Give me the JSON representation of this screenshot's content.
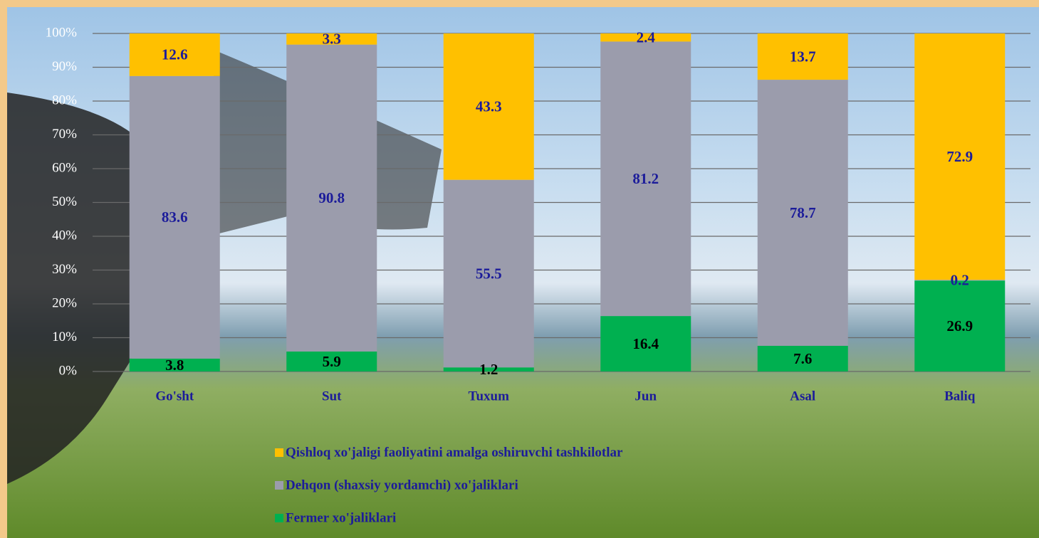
{
  "chart_data": {
    "type": "bar",
    "stacked": true,
    "categories": [
      "Go'sht",
      "Sut",
      "Tuxum",
      "Jun",
      "Asal",
      "Baliq"
    ],
    "series": [
      {
        "name": "Fermer xo'jaliklari",
        "color": "#00b050",
        "values": [
          3.8,
          5.9,
          1.2,
          16.4,
          7.6,
          26.9
        ]
      },
      {
        "name": "Dehqon (shaxsiy yordamchi) xo'jaliklari",
        "color": "#9b9cac",
        "values": [
          83.6,
          90.8,
          55.5,
          81.2,
          78.7,
          0.2
        ]
      },
      {
        "name": "Qishloq xo'jaligi faoliyatini amalga oshiruvchi tashkilotlar",
        "color": "#ffc000",
        "values": [
          12.6,
          3.3,
          43.3,
          2.4,
          13.7,
          72.9
        ]
      }
    ],
    "ylim": [
      0,
      100
    ],
    "yticks": [
      {
        "value": 0,
        "label": "0%"
      },
      {
        "value": 10,
        "label": "10%"
      },
      {
        "value": 20,
        "label": "20%"
      },
      {
        "value": 30,
        "label": "30%"
      },
      {
        "value": 40,
        "label": "40%"
      },
      {
        "value": 50,
        "label": "50%"
      },
      {
        "value": 60,
        "label": "60%"
      },
      {
        "value": 70,
        "label": "70%"
      },
      {
        "value": 80,
        "label": "80%"
      },
      {
        "value": 90,
        "label": "90%"
      },
      {
        "value": 100,
        "label": "100%"
      }
    ],
    "grid": true
  }
}
